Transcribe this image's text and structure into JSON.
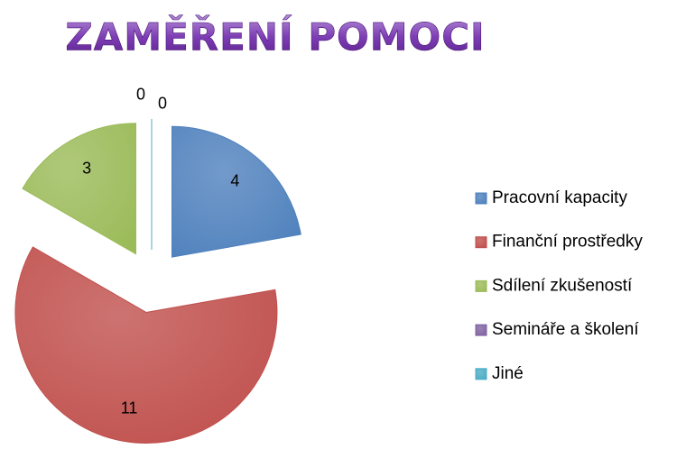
{
  "chart_data": {
    "type": "pie",
    "title": "ZAMĚŘENÍ POMOCI",
    "categories": [
      "Pracovní kapacity",
      "Finanční prostředky",
      "Sdílení zkušeností",
      "Semináře a školení",
      "Jiné"
    ],
    "values": [
      4,
      11,
      3,
      0,
      0
    ],
    "colors": [
      "#4f81bd",
      "#c0504d",
      "#9bbb59",
      "#8064a2",
      "#4bacc6"
    ],
    "exploded": true,
    "legend": "right"
  }
}
